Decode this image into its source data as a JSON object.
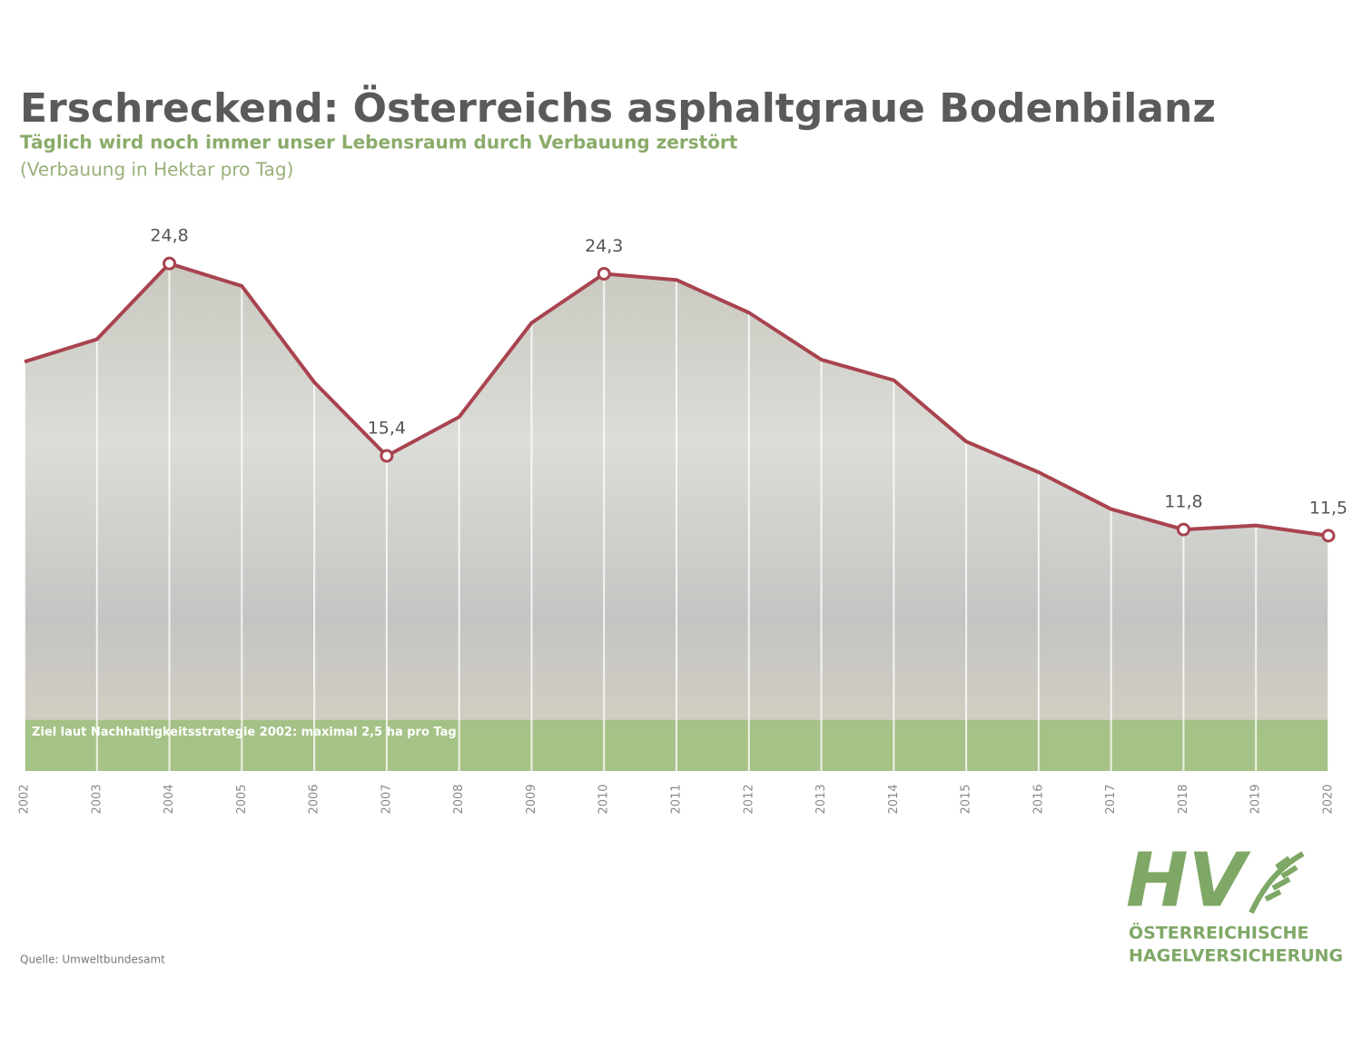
{
  "chart_data": {
    "type": "area",
    "title": "Erschreckend: Österreichs asphaltgraue Bodenbilanz",
    "subtitle": "Täglich wird noch immer unser Lebensraum durch Verbauung zerstört",
    "unit_note": "(Verbauung in Hektar pro Tag)",
    "categories": [
      "2002",
      "2003",
      "2004",
      "2005",
      "2006",
      "2007",
      "2008",
      "2009",
      "2010",
      "2011",
      "2012",
      "2013",
      "2014",
      "2015",
      "2016",
      "2017",
      "2018",
      "2019",
      "2020"
    ],
    "values": [
      20.0,
      21.1,
      24.8,
      23.7,
      19.0,
      15.4,
      17.3,
      21.9,
      24.3,
      24.0,
      22.4,
      20.1,
      19.1,
      16.1,
      14.6,
      12.8,
      11.8,
      12.0,
      11.5
    ],
    "value_labels": [
      null,
      null,
      "24,8",
      null,
      null,
      "15,4",
      null,
      null,
      "24,3",
      null,
      null,
      null,
      null,
      null,
      null,
      null,
      "11,8",
      null,
      "11,5"
    ],
    "color": "#a8434f",
    "ylim": [
      0,
      30
    ],
    "target": {
      "value": 2.5,
      "label": "Ziel laut Nachhaltigkeitsstrategie 2002: maximal 2,5 ha pro Tag",
      "color": "#9cbf7c"
    },
    "source": "Quelle: Umweltbundesamt"
  },
  "logo": {
    "mark": "HV",
    "lines": [
      "ÖSTERREICHISCHE",
      "HAGELVERSICHERUNG"
    ]
  }
}
